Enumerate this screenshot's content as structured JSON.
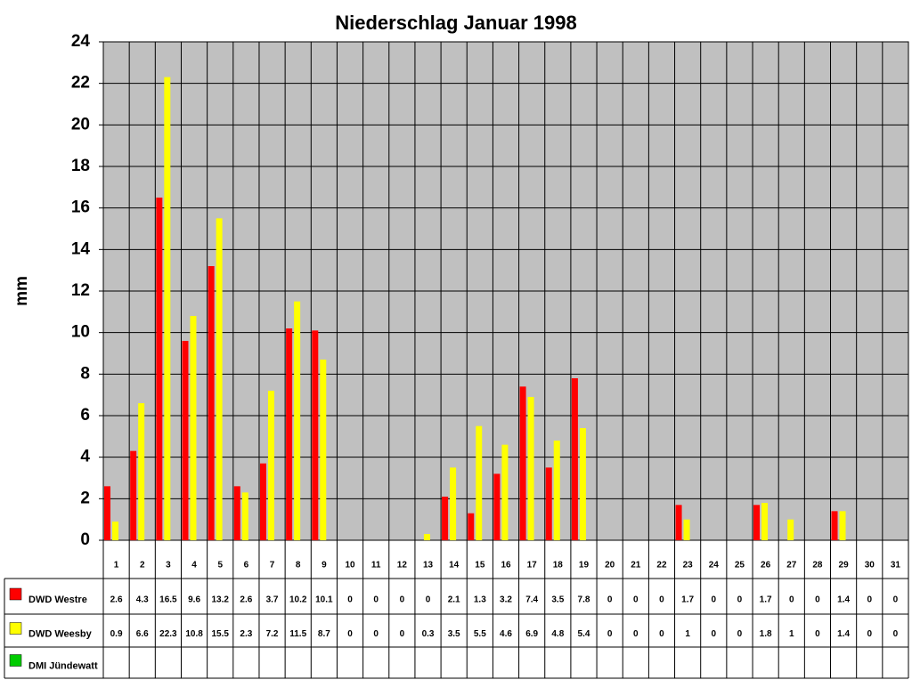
{
  "chart_data": {
    "type": "bar",
    "title": "Niederschlag Januar 1998",
    "y_label": "mm",
    "categories": [
      "1",
      "2",
      "3",
      "4",
      "5",
      "6",
      "7",
      "8",
      "9",
      "10",
      "11",
      "12",
      "13",
      "14",
      "15",
      "16",
      "17",
      "18",
      "19",
      "20",
      "21",
      "22",
      "23",
      "24",
      "25",
      "26",
      "27",
      "28",
      "29",
      "30",
      "31"
    ],
    "series": [
      {
        "name": "DWD Westre",
        "color": "#ff0000",
        "values": [
          2.6,
          4.3,
          16.5,
          9.6,
          13.2,
          2.6,
          3.7,
          10.2,
          10.1,
          0,
          0,
          0,
          0,
          2.1,
          1.3,
          3.2,
          7.4,
          3.5,
          7.8,
          0,
          0,
          0,
          1.7,
          0,
          0,
          1.7,
          0,
          0,
          1.4,
          0,
          0
        ]
      },
      {
        "name": "DWD Weesby",
        "color": "#ffff00",
        "values": [
          0.9,
          6.6,
          22.3,
          10.8,
          15.5,
          2.3,
          7.2,
          11.5,
          8.7,
          0,
          0,
          0,
          0.3,
          3.5,
          5.5,
          4.6,
          6.9,
          4.8,
          5.4,
          0,
          0,
          0,
          1,
          0,
          0,
          1.8,
          1,
          0,
          1.4,
          0,
          0
        ]
      },
      {
        "name": "DMI Jündewatt",
        "color": "#00cc00",
        "values": [
          null,
          null,
          null,
          null,
          null,
          null,
          null,
          null,
          null,
          null,
          null,
          null,
          null,
          null,
          null,
          null,
          null,
          null,
          null,
          null,
          null,
          null,
          null,
          null,
          null,
          null,
          null,
          null,
          null,
          null,
          null
        ]
      }
    ],
    "ylim": [
      0,
      24
    ],
    "yticks": [
      0,
      2,
      4,
      6,
      8,
      10,
      12,
      14,
      16,
      18,
      20,
      22,
      24
    ],
    "grid": true,
    "background": "#c0c0c0"
  }
}
